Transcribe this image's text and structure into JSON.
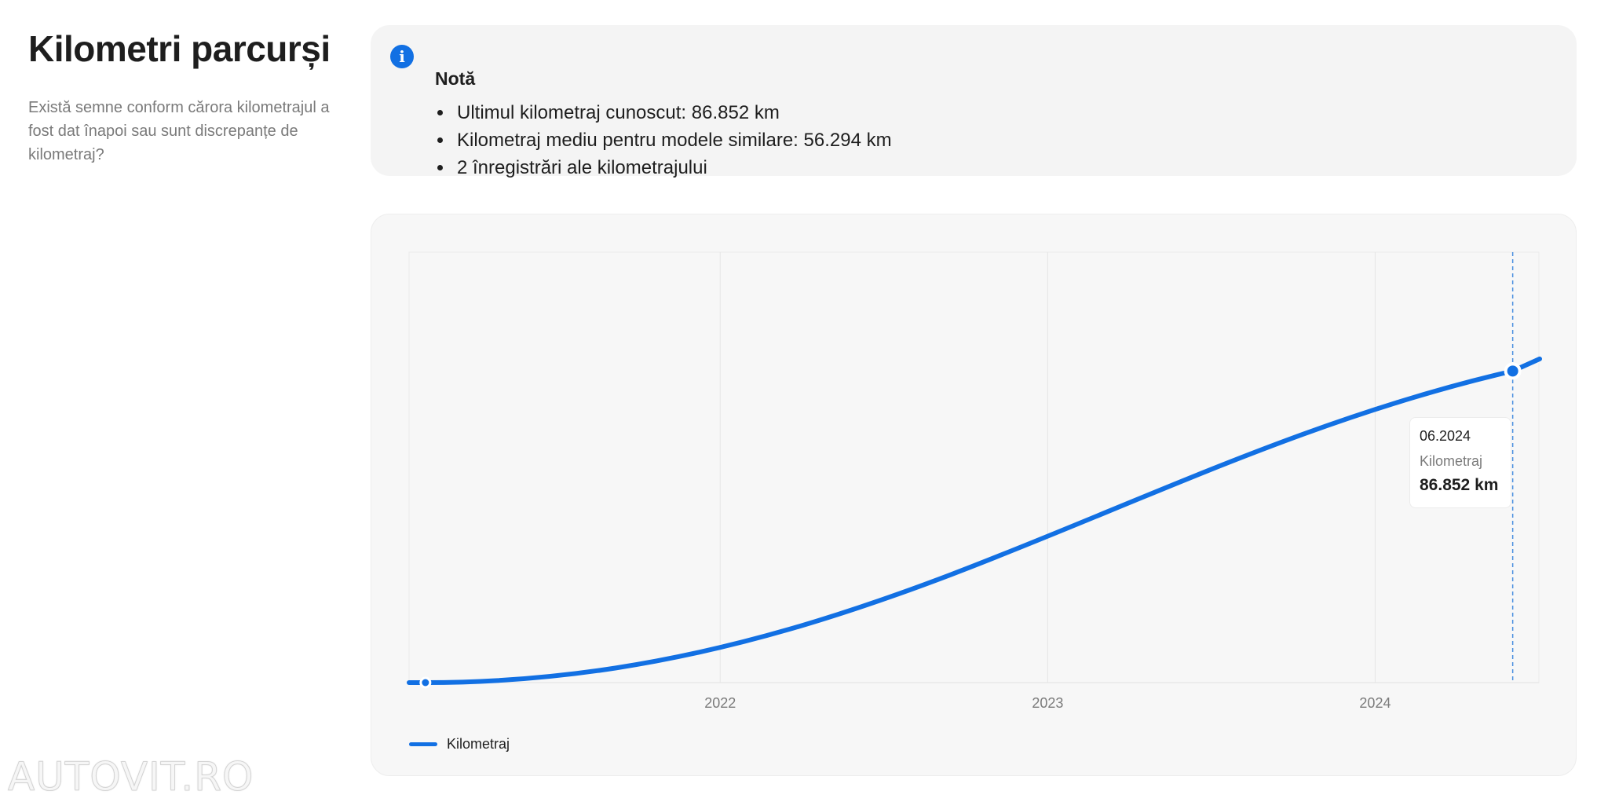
{
  "header": {
    "title": "Kilometri parcurși",
    "subtitle": "Există semne conform cărora kilometrajul a fost dat înapoi sau sunt discrepanțe de kilometraj?"
  },
  "note": {
    "icon": "info-icon",
    "title": "Notă",
    "items": [
      "Ultimul kilometraj cunoscut: 86.852 km",
      "Kilometraj mediu pentru modele similare: 56.294 km",
      "2 înregistrări ale kilometrajului"
    ]
  },
  "tooltip": {
    "date": "06.2024",
    "label": "Kilometraj",
    "value": "86.852 km"
  },
  "watermark": "AUTOVIT.RO",
  "colors": {
    "accent": "#1270e3",
    "card_bg": "#f4f4f4",
    "chart_bg": "#f7f7f7",
    "muted_text": "#7a7a7a"
  },
  "chart_data": {
    "type": "line",
    "x_ticks": [
      "2022",
      "2023",
      "2024"
    ],
    "x_range": [
      2021.05,
      2024.5
    ],
    "grid": true,
    "legend_position": "bottom-left",
    "series": [
      {
        "name": "Kilometraj",
        "points": [
          {
            "x": 2021.1,
            "y": 0
          },
          {
            "x": 2024.42,
            "y": 86852
          }
        ]
      }
    ]
  }
}
